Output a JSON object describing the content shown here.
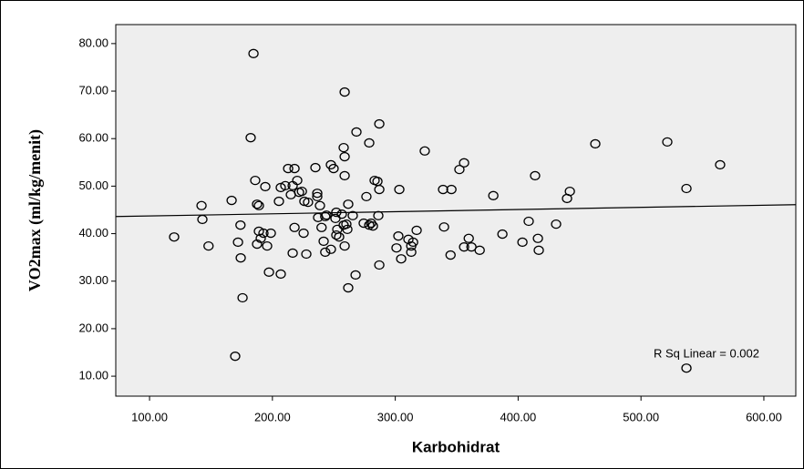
{
  "chart_data": {
    "type": "scatter",
    "x_label": "Karbohidrat",
    "y_label": "VO2max (ml/kg/menit)",
    "annotation": "R Sq Linear = 0.002",
    "xlim": [
      72.5,
      626
    ],
    "ylim": [
      5.8,
      84
    ],
    "xticks": [
      {
        "value": 100,
        "label": "100.00"
      },
      {
        "value": 200,
        "label": "200.00"
      },
      {
        "value": 300,
        "label": "300.00"
      },
      {
        "value": 400,
        "label": "400.00"
      },
      {
        "value": 500,
        "label": "500.00"
      },
      {
        "value": 600,
        "label": "600.00"
      }
    ],
    "yticks": [
      {
        "value": 10,
        "label": "10.00"
      },
      {
        "value": 20,
        "label": "20.00"
      },
      {
        "value": 30,
        "label": "30.00"
      },
      {
        "value": 40,
        "label": "40.00"
      },
      {
        "value": 50,
        "label": "50.00"
      },
      {
        "value": 60,
        "label": "60.00"
      },
      {
        "value": 70,
        "label": "70.00"
      },
      {
        "value": 80,
        "label": "80.00"
      }
    ],
    "fit_line": {
      "x": [
        72.5,
        626
      ],
      "y": [
        43.6,
        46.1
      ]
    },
    "series": [
      {
        "color": "#000000",
        "x": [
          120,
          142.3,
          143,
          148,
          166.8,
          169.7,
          172,
          174.2,
          174,
          175.7,
          182.3,
          184.6,
          186,
          187.5,
          189,
          187.5,
          189,
          192.7,
          190.5,
          194.2,
          195.7,
          197.2,
          198.7,
          205.3,
          206.8,
          206.8,
          210.5,
          212.8,
          215,
          216.5,
          216.5,
          218,
          218,
          220.2,
          221.7,
          224,
          225.4,
          226,
          227.6,
          229,
          235,
          236.5,
          236.5,
          237.2,
          238.7,
          240,
          241.7,
          243,
          243,
          244,
          247.6,
          247.6,
          249.8,
          251.3,
          252,
          252,
          252.8,
          254.3,
          256.5,
          258,
          258,
          258.8,
          258.8,
          258.8,
          258.8,
          260.2,
          261,
          261.7,
          261.7,
          265.4,
          267.7,
          268.4,
          274.3,
          276.5,
          278.8,
          278.8,
          280.3,
          281.8,
          283.2,
          285.5,
          286.2,
          287,
          287,
          287,
          301,
          302.5,
          303.3,
          304.8,
          310.7,
          313,
          313,
          314.5,
          317.4,
          324,
          338.9,
          339.7,
          345,
          345.7,
          352.2,
          356,
          356,
          359.8,
          362,
          368.7,
          379.8,
          387.2,
          403.5,
          408.6,
          413.8,
          416.1,
          416.8,
          430.9,
          439.8,
          442.1,
          462.8,
          521.4,
          537,
          537,
          564.4
        ],
        "values": [
          39.3,
          45.9,
          43,
          37.4,
          47,
          14.2,
          38.2,
          34.9,
          41.8,
          26.5,
          60.2,
          77.9,
          51.2,
          46.2,
          45.9,
          37.8,
          40.5,
          40.1,
          39,
          49.9,
          37.4,
          31.9,
          40.1,
          46.8,
          31.5,
          49.7,
          50.1,
          53.7,
          48.2,
          50.1,
          35.9,
          53.7,
          41.3,
          51.2,
          48.7,
          48.9,
          40.1,
          46.8,
          35.7,
          46.6,
          53.9,
          48.5,
          47.8,
          43.4,
          45.9,
          41.3,
          38.4,
          36.1,
          43.6,
          43.9,
          36.7,
          54.5,
          53.7,
          43.2,
          44.5,
          39.7,
          40.9,
          39.3,
          44.1,
          41.8,
          58.1,
          56.2,
          52.2,
          69.8,
          37.4,
          42,
          40.9,
          28.6,
          46.2,
          43.8,
          31.3,
          61.4,
          42.2,
          47.8,
          41.8,
          59.1,
          42.2,
          41.6,
          51.2,
          51,
          43.8,
          33.4,
          49.3,
          63.1,
          37,
          39.5,
          49.3,
          34.7,
          38.8,
          37.4,
          36.1,
          38.2,
          40.7,
          57.4,
          49.3,
          41.4,
          35.5,
          49.3,
          53.5,
          54.9,
          37.2,
          39,
          37.2,
          36.5,
          48,
          39.9,
          38.2,
          42.6,
          52.2,
          39,
          36.5,
          42,
          47.4,
          48.9,
          58.9,
          59.3,
          49.5,
          11.7,
          54.5
        ]
      }
    ]
  }
}
